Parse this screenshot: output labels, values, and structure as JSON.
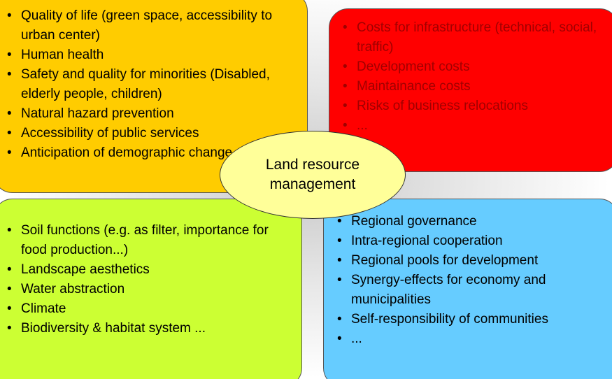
{
  "quadrants": [
    {
      "items": [
        "Quality of life (green space, accessibility to urban center)",
        "Human health",
        "Safety and quality for minorities (Disabled, elderly people, children)",
        "Natural hazard prevention",
        "Accessibility of public services",
        "Anticipation of demographic change..."
      ]
    },
    {
      "items": [
        "Costs for infrastructure (technical, social, traffic)",
        "Development costs",
        "Maintainance costs",
        "Risks of business relocations",
        "..."
      ]
    },
    {
      "items": [
        "Soil functions (e.g. as filter, importance for food production...)",
        "Landscape aesthetics",
        "Water abstraction",
        "Climate",
        "Biodiversity & habitat system ..."
      ]
    },
    {
      "items": [
        "Regional governance",
        "Intra-regional cooperation",
        "Regional pools for development",
        "Synergy-effects for economy and municipalities",
        "Self-responsibility of communities",
        "..."
      ]
    }
  ],
  "center": {
    "label": "Land resource management"
  }
}
